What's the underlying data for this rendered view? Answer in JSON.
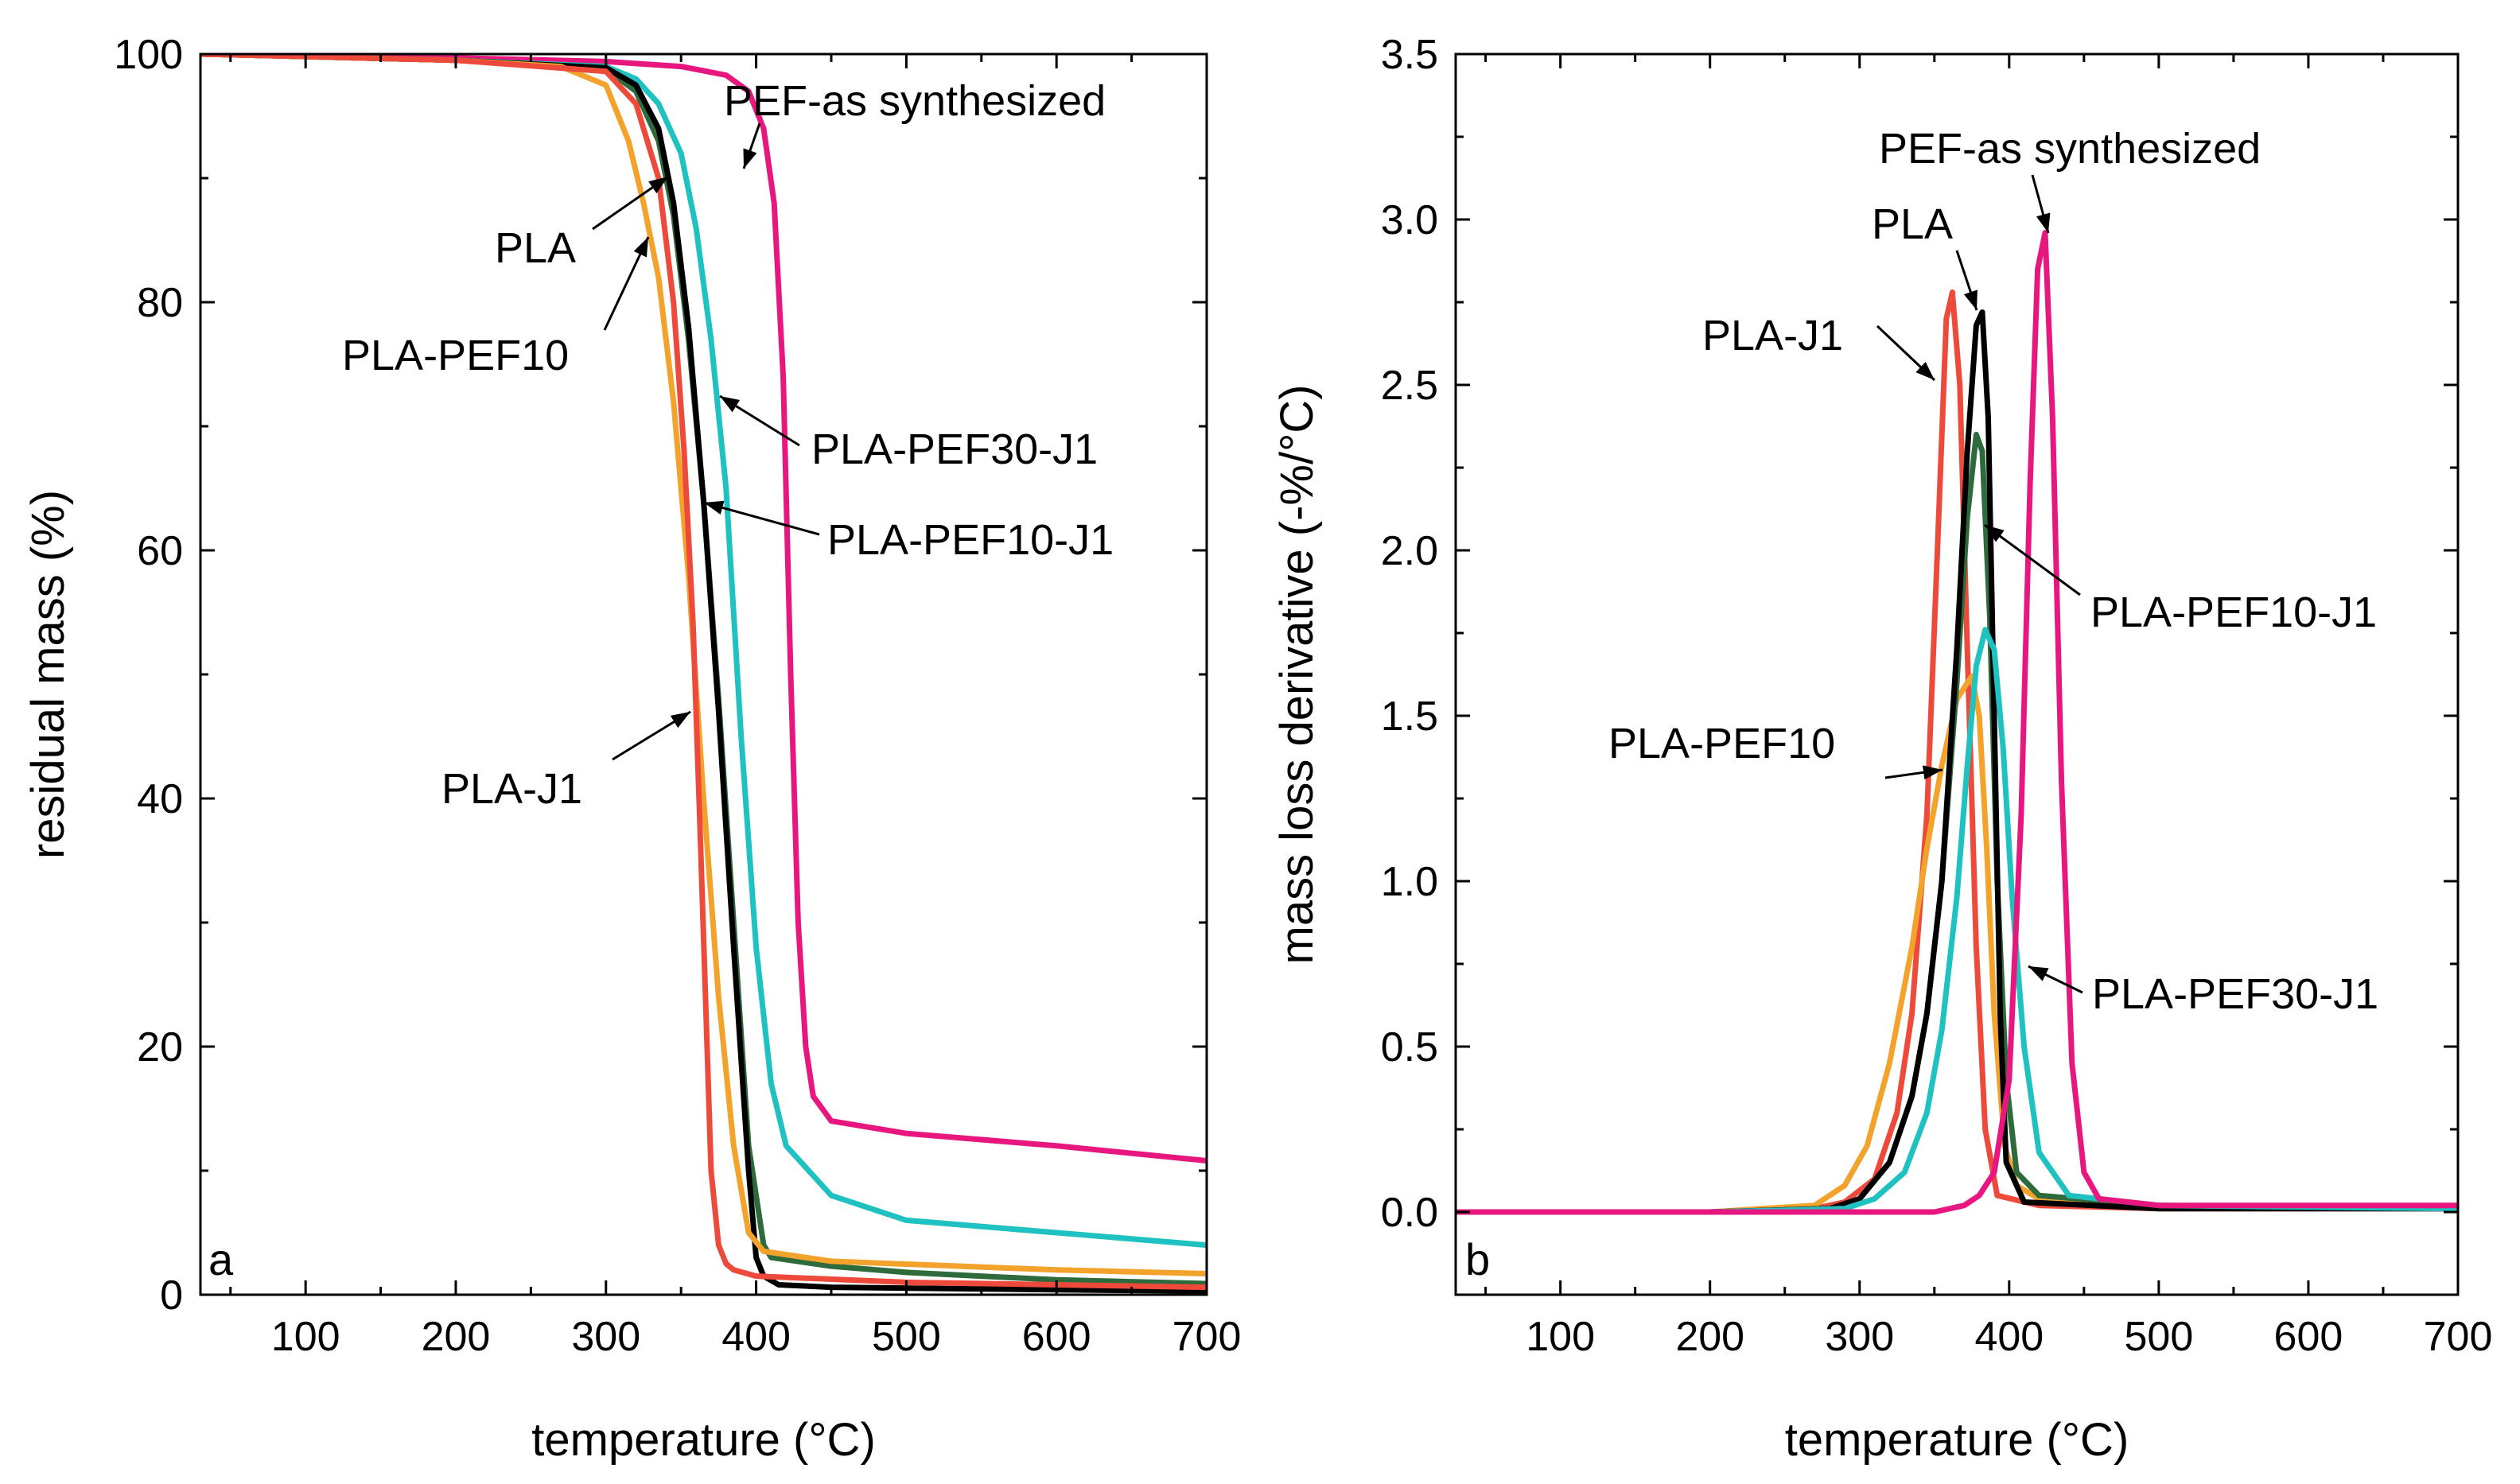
{
  "chart_data": [
    {
      "type": "line",
      "panel_label": "a",
      "title": "",
      "xlabel": "temperature (°C)",
      "ylabel": "residual mass (%)",
      "xlim": [
        30,
        700
      ],
      "ylim": [
        0,
        100
      ],
      "xticks": [
        100,
        200,
        300,
        400,
        500,
        600,
        700
      ],
      "yticks": [
        0,
        20,
        40,
        60,
        80,
        100
      ],
      "grid": false,
      "series": [
        {
          "name": "PEF-as synthesized",
          "color": "#E8177F",
          "x": [
            30,
            100,
            200,
            300,
            350,
            380,
            395,
            405,
            412,
            418,
            423,
            428,
            433,
            438,
            450,
            500,
            600,
            700
          ],
          "y": [
            100,
            99.9,
            99.7,
            99.4,
            99,
            98.3,
            97,
            94,
            88,
            74,
            50,
            30,
            20,
            16,
            14,
            13,
            12,
            10.8
          ]
        },
        {
          "name": "PLA-PEF30-J1",
          "color": "#1FC1C1",
          "x": [
            30,
            100,
            200,
            300,
            320,
            335,
            350,
            360,
            370,
            380,
            390,
            400,
            410,
            420,
            450,
            500,
            600,
            700
          ],
          "y": [
            100,
            99.8,
            99.5,
            99,
            98,
            96,
            92,
            86,
            77,
            65,
            45,
            28,
            17,
            12,
            8,
            6,
            5,
            4
          ]
        },
        {
          "name": "PLA-PEF10-J1",
          "color": "#2E6B3C",
          "x": [
            30,
            100,
            200,
            300,
            320,
            335,
            345,
            355,
            365,
            375,
            385,
            395,
            405,
            410,
            450,
            500,
            600,
            700
          ],
          "y": [
            100,
            99.8,
            99.5,
            98.8,
            97,
            93,
            87,
            77,
            64,
            48,
            30,
            12,
            4,
            3,
            2.3,
            1.8,
            1.2,
            0.9
          ]
        },
        {
          "name": "PLA",
          "color": "#000000",
          "x": [
            30,
            100,
            200,
            300,
            320,
            335,
            345,
            355,
            365,
            375,
            385,
            395,
            400,
            405,
            415,
            450,
            600,
            700
          ],
          "y": [
            100,
            99.8,
            99.5,
            98.9,
            97.5,
            94,
            88,
            78,
            64,
            47,
            28,
            10,
            3,
            1.5,
            0.8,
            0.6,
            0.4,
            0.3
          ]
        },
        {
          "name": "PLA-PEF10",
          "color": "#F3A22C",
          "x": [
            30,
            100,
            200,
            270,
            300,
            315,
            325,
            335,
            345,
            355,
            365,
            375,
            385,
            395,
            405,
            450,
            600,
            700
          ],
          "y": [
            100,
            99.8,
            99.5,
            99,
            97.5,
            93,
            88,
            82,
            72,
            58,
            40,
            24,
            12,
            5,
            3.5,
            2.7,
            2,
            1.7
          ]
        },
        {
          "name": "PLA-J1",
          "color": "#EE4A3C",
          "x": [
            30,
            100,
            200,
            300,
            320,
            335,
            345,
            352,
            358,
            362,
            366,
            370,
            375,
            380,
            385,
            400,
            500,
            600,
            700
          ],
          "y": [
            100,
            99.8,
            99.5,
            98.6,
            96,
            90,
            80,
            68,
            54,
            40,
            25,
            10,
            4,
            2.5,
            2,
            1.5,
            1,
            0.8,
            0.6
          ]
        }
      ],
      "annotations": [
        {
          "text": "PEF-as synthesized"
        },
        {
          "text": "PLA"
        },
        {
          "text": "PLA-PEF10"
        },
        {
          "text": "PLA-PEF30-J1"
        },
        {
          "text": "PLA-PEF10-J1"
        },
        {
          "text": "PLA-J1"
        }
      ]
    },
    {
      "type": "line",
      "panel_label": "b",
      "title": "",
      "xlabel": "temperature (°C)",
      "ylabel": "mass loss derivative (-%/°C)",
      "xlim": [
        30,
        700
      ],
      "ylim": [
        -0.25,
        3.5
      ],
      "xticks": [
        100,
        200,
        300,
        400,
        500,
        600,
        700
      ],
      "yticks": [
        0.0,
        0.5,
        1.0,
        1.5,
        2.0,
        2.5,
        3.0,
        3.5
      ],
      "grid": false,
      "series": [
        {
          "name": "PLA-J1",
          "color": "#EE4A3C",
          "x": [
            30,
            200,
            270,
            290,
            310,
            325,
            335,
            345,
            352,
            358,
            362,
            367,
            372,
            378,
            384,
            392,
            420,
            500,
            700
          ],
          "y": [
            0,
            0,
            0.01,
            0.03,
            0.1,
            0.3,
            0.6,
            1.2,
            2.0,
            2.7,
            2.78,
            2.5,
            1.7,
            0.8,
            0.25,
            0.05,
            0.02,
            0.01,
            0.01
          ]
        },
        {
          "name": "PLA-PEF10",
          "color": "#F3A22C",
          "x": [
            30,
            200,
            270,
            290,
            305,
            320,
            335,
            345,
            355,
            365,
            375,
            380,
            385,
            390,
            397,
            405,
            420,
            500,
            700
          ],
          "y": [
            0,
            0,
            0.02,
            0.08,
            0.2,
            0.45,
            0.8,
            1.1,
            1.35,
            1.55,
            1.62,
            1.5,
            1.1,
            0.6,
            0.2,
            0.08,
            0.04,
            0.02,
            0.01
          ]
        },
        {
          "name": "PLA-PEF10-J1",
          "color": "#2E6B3C",
          "x": [
            30,
            200,
            280,
            300,
            320,
            335,
            345,
            355,
            365,
            372,
            378,
            382,
            387,
            392,
            398,
            405,
            420,
            500,
            700
          ],
          "y": [
            0,
            0,
            0.01,
            0.04,
            0.15,
            0.35,
            0.6,
            1.0,
            1.6,
            2.1,
            2.35,
            2.3,
            1.8,
            1.0,
            0.4,
            0.12,
            0.05,
            0.02,
            0.01
          ]
        },
        {
          "name": "PLA",
          "color": "#000000",
          "x": [
            30,
            200,
            280,
            300,
            320,
            335,
            345,
            355,
            365,
            372,
            378,
            382,
            386,
            390,
            394,
            398,
            410,
            500,
            700
          ],
          "y": [
            0,
            0,
            0.01,
            0.04,
            0.15,
            0.35,
            0.6,
            1.0,
            1.7,
            2.3,
            2.68,
            2.72,
            2.4,
            1.5,
            0.6,
            0.15,
            0.03,
            0.01,
            0.01
          ]
        },
        {
          "name": "PLA-PEF30-J1",
          "color": "#1FC1C1",
          "x": [
            30,
            200,
            290,
            310,
            330,
            345,
            355,
            365,
            372,
            378,
            384,
            390,
            396,
            402,
            410,
            420,
            440,
            500,
            700
          ],
          "y": [
            0,
            0,
            0.01,
            0.04,
            0.12,
            0.3,
            0.55,
            0.95,
            1.35,
            1.65,
            1.76,
            1.7,
            1.4,
            0.95,
            0.5,
            0.18,
            0.05,
            0.02,
            0.01
          ]
        },
        {
          "name": "PEF-as synthesized",
          "color": "#E8177F",
          "x": [
            30,
            200,
            300,
            350,
            370,
            380,
            390,
            400,
            408,
            414,
            419,
            424,
            429,
            435,
            442,
            450,
            460,
            500,
            700
          ],
          "y": [
            0,
            0,
            0,
            0,
            0.02,
            0.05,
            0.12,
            0.4,
            1.2,
            2.2,
            2.85,
            2.96,
            2.4,
            1.3,
            0.45,
            0.12,
            0.04,
            0.02,
            0.02
          ]
        }
      ],
      "annotations": [
        {
          "text": "PEF-as synthesized"
        },
        {
          "text": "PLA"
        },
        {
          "text": "PLA-J1"
        },
        {
          "text": "PLA-PEF10-J1"
        },
        {
          "text": "PLA-PEF10"
        },
        {
          "text": "PLA-PEF30-J1"
        }
      ]
    }
  ]
}
